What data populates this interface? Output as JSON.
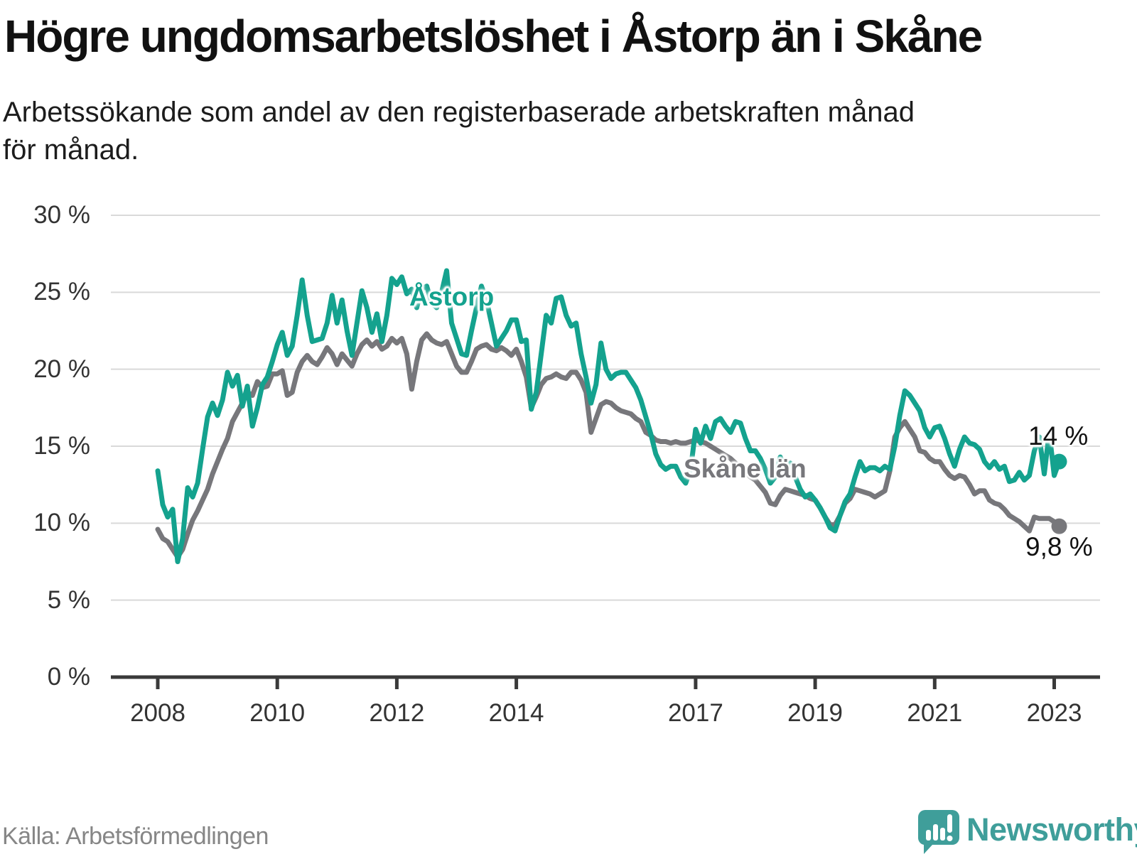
{
  "header": {
    "title": "Högre ungdomsarbetslöshet i Åstorp än i Skåne",
    "subtitle": "Arbetssökande som andel av den registerbaserade arbetskraften månad\nför månad."
  },
  "chart_data": {
    "type": "line",
    "title": "Högre ungdomsarbetslöshet i Åstorp än i Skåne",
    "subtitle": "Arbetssökande som andel av den registerbaserade arbetskraften månad för månad.",
    "unit": "%",
    "frequency": "monthly",
    "x_start": "2008-01",
    "x_end": "2023-02",
    "grid": "horizontal",
    "legend_position": "inline-labels",
    "y_axis": {
      "min": 0,
      "max": 30,
      "tick_step": 5,
      "tick_labels": [
        "0 %",
        "5 %",
        "10 %",
        "15 %",
        "20 %",
        "25 %",
        "30 %"
      ]
    },
    "x_axis": {
      "tick_years": [
        2008,
        2010,
        2012,
        2014,
        2017,
        2019,
        2021,
        2023
      ],
      "tick_labels": [
        "2008",
        "2010",
        "2012",
        "2014",
        "2017",
        "2019",
        "2021",
        "2023"
      ]
    },
    "series": [
      {
        "name": "Åstorp",
        "color": "#14a28e",
        "final_value": 14.0,
        "end_label": "14 %",
        "values": [
          13.4,
          11.2,
          10.4,
          10.9,
          7.5,
          9.0,
          12.3,
          11.7,
          12.6,
          14.8,
          16.9,
          17.8,
          17.0,
          18.0,
          19.8,
          18.9,
          19.6,
          17.6,
          18.9,
          16.3,
          17.5,
          19.0,
          19.5,
          20.5,
          21.6,
          22.4,
          20.9,
          21.5,
          23.5,
          25.8,
          23.5,
          21.8,
          21.9,
          22.0,
          23.0,
          24.8,
          23.0,
          24.5,
          22.5,
          20.9,
          23.0,
          25.1,
          24.0,
          22.4,
          23.6,
          21.8,
          23.5,
          25.9,
          25.5,
          26.0,
          24.9,
          25.2,
          24.0,
          25.2,
          25.4,
          24.3,
          24.0,
          25.0,
          26.4,
          23.0,
          22.0,
          21.0,
          20.9,
          22.5,
          24.0,
          25.4,
          24.5,
          23.0,
          21.5,
          22.0,
          22.5,
          23.2,
          23.2,
          21.8,
          21.9,
          17.4,
          18.5,
          21.0,
          23.5,
          23.0,
          24.6,
          24.7,
          23.5,
          22.8,
          23.0,
          21.0,
          19.5,
          17.8,
          19.0,
          21.7,
          20.0,
          19.4,
          19.7,
          19.8,
          19.8,
          19.3,
          18.8,
          18.0,
          16.9,
          15.8,
          14.5,
          13.8,
          13.5,
          13.7,
          13.7,
          13.0,
          12.6,
          13.5,
          16.1,
          15.2,
          16.3,
          15.5,
          16.6,
          16.8,
          16.3,
          15.9,
          16.6,
          16.5,
          15.5,
          14.7,
          14.7,
          14.2,
          13.5,
          12.6,
          13.0,
          14.3,
          13.6,
          13.9,
          13.0,
          12.2,
          11.7,
          11.9,
          11.5,
          11.0,
          10.4,
          9.7,
          9.5,
          10.5,
          11.4,
          11.9,
          13.0,
          14.0,
          13.4,
          13.6,
          13.6,
          13.4,
          13.7,
          13.5,
          15.0,
          17.0,
          18.6,
          18.3,
          17.8,
          17.3,
          16.2,
          15.6,
          16.2,
          16.3,
          15.5,
          14.5,
          13.7,
          14.8,
          15.6,
          15.2,
          15.1,
          14.8,
          14.0,
          13.6,
          14.0,
          13.5,
          13.7,
          12.7,
          12.8,
          13.3,
          12.8,
          13.1,
          14.7,
          15.6,
          13.2,
          15.9,
          13.1,
          14.0
        ]
      },
      {
        "name": "Skåne län",
        "color": "#77777b",
        "final_value": 9.8,
        "end_label": "9,8 %",
        "values": [
          9.6,
          9.0,
          8.8,
          8.3,
          7.8,
          8.3,
          9.3,
          10.2,
          10.8,
          11.5,
          12.2,
          13.2,
          14.0,
          14.8,
          15.5,
          16.6,
          17.2,
          17.8,
          18.5,
          18.3,
          19.2,
          18.8,
          18.9,
          19.7,
          19.7,
          19.9,
          18.3,
          18.5,
          19.8,
          20.5,
          20.9,
          20.5,
          20.3,
          20.8,
          21.4,
          21.0,
          20.3,
          21.0,
          20.6,
          20.2,
          21.0,
          21.6,
          21.9,
          21.5,
          21.8,
          21.3,
          21.5,
          22.0,
          21.7,
          22.0,
          21.0,
          18.7,
          20.5,
          21.9,
          22.3,
          21.9,
          21.7,
          21.6,
          21.8,
          21.0,
          20.2,
          19.8,
          19.8,
          20.5,
          21.3,
          21.5,
          21.6,
          21.3,
          21.2,
          21.4,
          21.2,
          20.9,
          21.3,
          20.5,
          19.5,
          17.5,
          18.2,
          19.0,
          19.4,
          19.5,
          19.7,
          19.5,
          19.4,
          19.8,
          19.8,
          19.3,
          18.5,
          15.9,
          16.8,
          17.7,
          17.9,
          17.8,
          17.5,
          17.3,
          17.2,
          17.1,
          16.8,
          16.6,
          15.9,
          15.7,
          15.4,
          15.3,
          15.3,
          15.2,
          15.3,
          15.2,
          15.2,
          15.3,
          15.4,
          15.3,
          15.2,
          15.0,
          14.8,
          14.6,
          14.4,
          14.2,
          13.9,
          13.6,
          13.3,
          13.0,
          12.8,
          12.4,
          12.0,
          11.3,
          11.2,
          11.8,
          12.2,
          12.1,
          12.0,
          11.9,
          11.8,
          11.6,
          11.5,
          11.0,
          10.4,
          9.9,
          9.9,
          10.5,
          11.3,
          11.6,
          12.2,
          12.1,
          12.0,
          11.9,
          11.7,
          11.9,
          12.1,
          13.4,
          15.6,
          16.2,
          16.6,
          16.1,
          15.6,
          14.7,
          14.6,
          14.2,
          14.0,
          14.0,
          13.5,
          13.1,
          12.9,
          13.1,
          13.0,
          12.5,
          11.9,
          12.1,
          12.1,
          11.5,
          11.3,
          11.2,
          10.9,
          10.5,
          10.3,
          10.1,
          9.8,
          9.5,
          10.4,
          10.3,
          10.3,
          10.3,
          10.1,
          9.8
        ]
      }
    ],
    "annotations": {
      "astorp_label": "Åstorp",
      "skane_label": "Skåne län"
    }
  },
  "footer": {
    "source": "Källa: Arbetsförmedlingen",
    "brand": "Newsworthy"
  },
  "colors": {
    "astorp": "#14a28e",
    "skane": "#77777b",
    "grid": "#d9d9d9",
    "axis": "#3a3a3a",
    "brand_teal": "#3f9e9a"
  }
}
